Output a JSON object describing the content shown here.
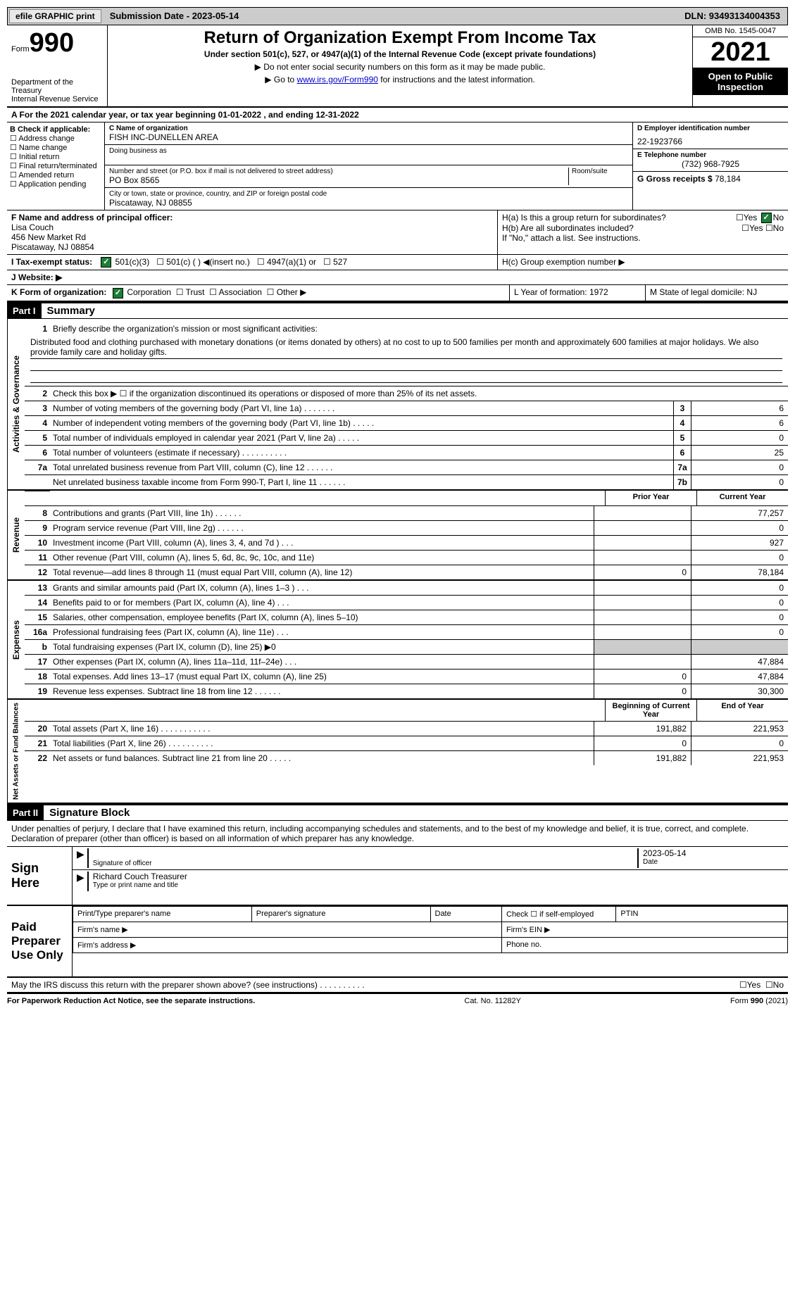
{
  "top": {
    "efile": "efile GRAPHIC print",
    "submission": "Submission Date - 2023-05-14",
    "dln": "DLN: 93493134004353"
  },
  "header": {
    "form_prefix": "Form",
    "form_number": "990",
    "dept": "Department of the Treasury\nInternal Revenue Service",
    "title": "Return of Organization Exempt From Income Tax",
    "subtitle": "Under section 501(c), 527, or 4947(a)(1) of the Internal Revenue Code (except private foundations)",
    "note1": "▶ Do not enter social security numbers on this form as it may be made public.",
    "note2_pre": "▶ Go to ",
    "note2_link": "www.irs.gov/Form990",
    "note2_post": " for instructions and the latest information.",
    "omb": "OMB No. 1545-0047",
    "year": "2021",
    "inspection": "Open to Public Inspection"
  },
  "rowA": "A For the 2021 calendar year, or tax year beginning 01-01-2022   , and ending 12-31-2022",
  "colB": {
    "header": "B Check if applicable:",
    "items": [
      "Address change",
      "Name change",
      "Initial return",
      "Final return/terminated",
      "Amended return",
      "Application pending"
    ]
  },
  "colC": {
    "name_label": "C Name of organization",
    "name": "FISH INC-DUNELLEN AREA",
    "dba_label": "Doing business as",
    "addr_label": "Number and street (or P.O. box if mail is not delivered to street address)",
    "room_label": "Room/suite",
    "addr": "PO Box 8565",
    "city_label": "City or town, state or province, country, and ZIP or foreign postal code",
    "city": "Piscataway, NJ  08855"
  },
  "colD": {
    "ein_label": "D Employer identification number",
    "ein": "22-1923766",
    "phone_label": "E Telephone number",
    "phone": "(732) 968-7925",
    "gross_label": "G Gross receipts $",
    "gross": "78,184"
  },
  "rowF": {
    "label": "F Name and address of principal officer:",
    "name": "Lisa Couch",
    "addr1": "456 New Market Rd",
    "addr2": "Piscataway, NJ  08854"
  },
  "rowH": {
    "ha": "H(a)  Is this a group return for subordinates?",
    "hb": "H(b)  Are all subordinates included?",
    "hb_note": "If \"No,\" attach a list. See instructions.",
    "hc": "H(c)  Group exemption number ▶",
    "yes": "Yes",
    "no": "No"
  },
  "rowI": {
    "label": "I  Tax-exempt status:",
    "o1": "501(c)(3)",
    "o2": "501(c) (  ) ◀(insert no.)",
    "o3": "4947(a)(1) or",
    "o4": "527"
  },
  "rowJ": "J  Website: ▶",
  "rowK": {
    "label": "K Form of organization:",
    "o1": "Corporation",
    "o2": "Trust",
    "o3": "Association",
    "o4": "Other ▶"
  },
  "rowL": "L Year of formation: 1972",
  "rowM": "M State of legal domicile: NJ",
  "part1": {
    "tag": "Part I",
    "title": "Summary",
    "line1_label": "Briefly describe the organization's mission or most significant activities:",
    "line1_text": "Distributed food and clothing purchased with monetary donations (or items donated by others) at no cost to up to 500 families per month and approximately 600 families at major holidays. We also provide family care and holiday gifts.",
    "line2": "Check this box ▶ ☐ if the organization discontinued its operations or disposed of more than 25% of its net assets.",
    "prior_year": "Prior Year",
    "current_year": "Current Year",
    "begin_year": "Beginning of Current Year",
    "end_year": "End of Year",
    "sections": {
      "gov": "Activities & Governance",
      "rev": "Revenue",
      "exp": "Expenses",
      "net": "Net Assets or Fund Balances"
    },
    "rows_gov": [
      {
        "n": "3",
        "t": "Number of voting members of the governing body (Part VI, line 1a)   .    .    .    .    .    .    .",
        "box": "3",
        "v": "6"
      },
      {
        "n": "4",
        "t": "Number of independent voting members of the governing body (Part VI, line 1b)  .    .    .    .    .",
        "box": "4",
        "v": "6"
      },
      {
        "n": "5",
        "t": "Total number of individuals employed in calendar year 2021 (Part V, line 2a)    .    .    .    .    .",
        "box": "5",
        "v": "0"
      },
      {
        "n": "6",
        "t": "Total number of volunteers (estimate if necessary)    .    .    .    .    .    .    .    .    .    .",
        "box": "6",
        "v": "25"
      },
      {
        "n": "7a",
        "t": "Total unrelated business revenue from Part VIII, column (C), line 12     .    .    .    .    .    .",
        "box": "7a",
        "v": "0"
      },
      {
        "n": "",
        "t": "Net unrelated business taxable income from Form 990-T, Part I, line 11  .    .    .    .    .    .",
        "box": "7b",
        "v": "0"
      }
    ],
    "rows_rev": [
      {
        "n": "8",
        "t": "Contributions and grants (Part VIII, line 1h)    .    .    .    .    .    .",
        "pv": "",
        "cv": "77,257"
      },
      {
        "n": "9",
        "t": "Program service revenue (Part VIII, line 2g)    .    .    .    .    .    .",
        "pv": "",
        "cv": "0"
      },
      {
        "n": "10",
        "t": "Investment income (Part VIII, column (A), lines 3, 4, and 7d )    .    .    .",
        "pv": "",
        "cv": "927"
      },
      {
        "n": "11",
        "t": "Other revenue (Part VIII, column (A), lines 5, 6d, 8c, 9c, 10c, and 11e)",
        "pv": "",
        "cv": "0"
      },
      {
        "n": "12",
        "t": "Total revenue—add lines 8 through 11 (must equal Part VIII, column (A), line 12)",
        "pv": "0",
        "cv": "78,184"
      }
    ],
    "rows_exp": [
      {
        "n": "13",
        "t": "Grants and similar amounts paid (Part IX, column (A), lines 1–3 )   .    .    .",
        "pv": "",
        "cv": "0"
      },
      {
        "n": "14",
        "t": "Benefits paid to or for members (Part IX, column (A), line 4)   .    .    .",
        "pv": "",
        "cv": "0"
      },
      {
        "n": "15",
        "t": "Salaries, other compensation, employee benefits (Part IX, column (A), lines 5–10)",
        "pv": "",
        "cv": "0"
      },
      {
        "n": "16a",
        "t": "Professional fundraising fees (Part IX, column (A), line 11e)    .    .    .",
        "pv": "",
        "cv": "0"
      },
      {
        "n": "b",
        "t": "Total fundraising expenses (Part IX, column (D), line 25) ▶0",
        "pv": "",
        "cv": "",
        "shaded": true
      },
      {
        "n": "17",
        "t": "Other expenses (Part IX, column (A), lines 11a–11d, 11f–24e)    .    .    .",
        "pv": "",
        "cv": "47,884"
      },
      {
        "n": "18",
        "t": "Total expenses. Add lines 13–17 (must equal Part IX, column (A), line 25)",
        "pv": "0",
        "cv": "47,884"
      },
      {
        "n": "19",
        "t": "Revenue less expenses. Subtract line 18 from line 12  .    .    .    .    .    .",
        "pv": "0",
        "cv": "30,300"
      }
    ],
    "rows_net": [
      {
        "n": "20",
        "t": "Total assets (Part X, line 16)  .    .    .    .    .    .    .    .    .    .    .",
        "pv": "191,882",
        "cv": "221,953"
      },
      {
        "n": "21",
        "t": "Total liabilities (Part X, line 26)  .    .    .    .    .    .    .    .    .    .",
        "pv": "0",
        "cv": "0"
      },
      {
        "n": "22",
        "t": "Net assets or fund balances. Subtract line 21 from line 20  .    .    .    .    .",
        "pv": "191,882",
        "cv": "221,953"
      }
    ]
  },
  "part2": {
    "tag": "Part II",
    "title": "Signature Block",
    "penalties": "Under penalties of perjury, I declare that I have examined this return, including accompanying schedules and statements, and to the best of my knowledge and belief, it is true, correct, and complete. Declaration of preparer (other than officer) is based on all information of which preparer has any knowledge."
  },
  "sign": {
    "label": "Sign Here",
    "sig_label": "Signature of officer",
    "date": "2023-05-14",
    "date_label": "Date",
    "name": "Richard Couch  Treasurer",
    "name_label": "Type or print name and title"
  },
  "preparer": {
    "label": "Paid Preparer Use Only",
    "h1": "Print/Type preparer's name",
    "h2": "Preparer's signature",
    "h3": "Date",
    "h4_pre": "Check ☐ if self-employed",
    "h5": "PTIN",
    "firm_name": "Firm's name    ▶",
    "firm_ein": "Firm's EIN ▶",
    "firm_addr": "Firm's address ▶",
    "phone": "Phone no."
  },
  "discuss": "May the IRS discuss this return with the preparer shown above? (see instructions)   .    .    .    .    .    .    .    .    .    .",
  "footer": {
    "left": "For Paperwork Reduction Act Notice, see the separate instructions.",
    "mid": "Cat. No. 11282Y",
    "right": "Form 990 (2021)"
  }
}
